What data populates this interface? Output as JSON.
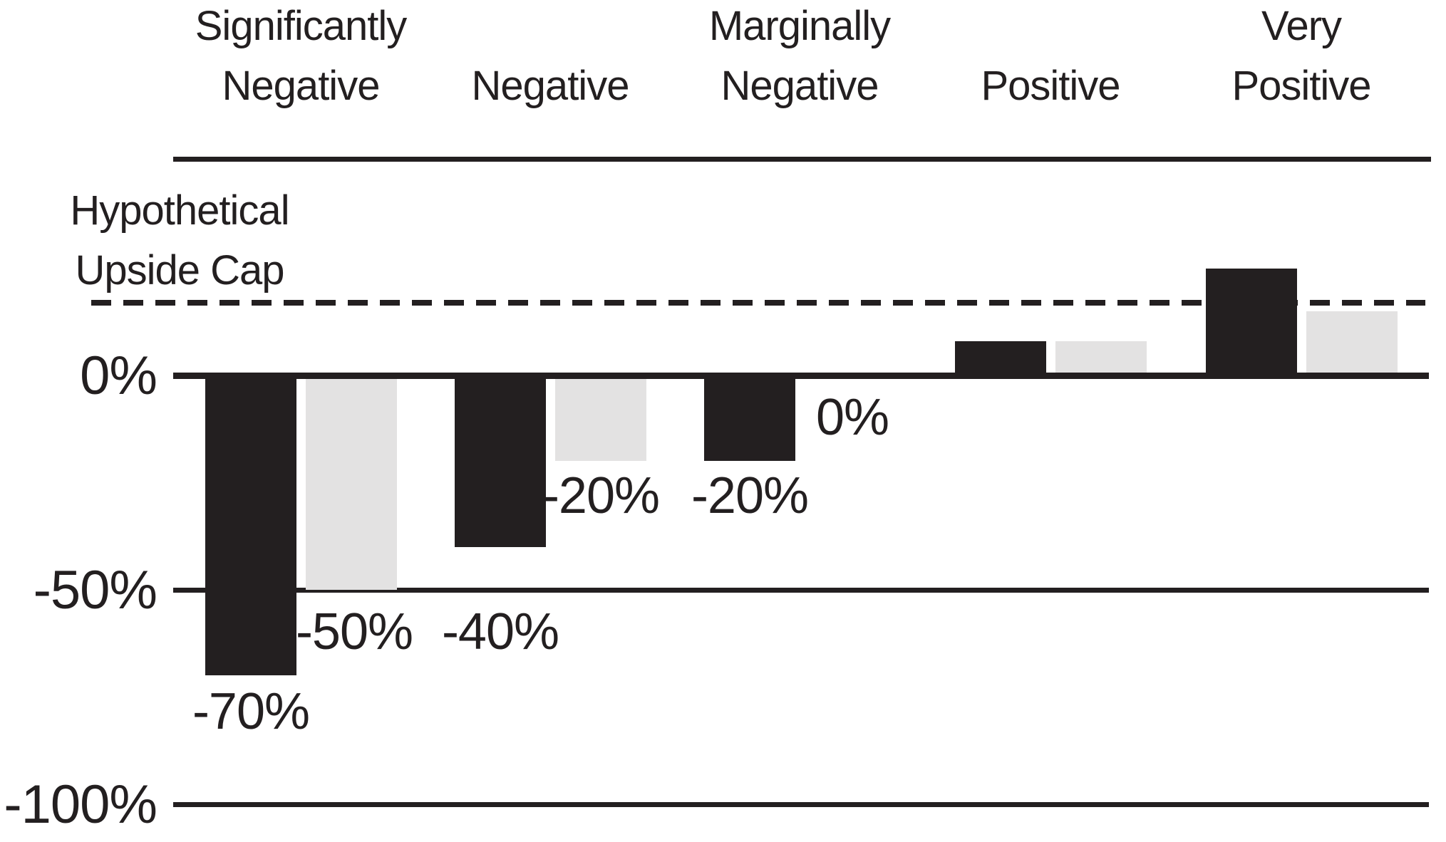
{
  "chart_data": {
    "type": "bar",
    "title": "",
    "categories": [
      {
        "label": "Significantly Negative",
        "lines": [
          "Significantly",
          "Negative"
        ]
      },
      {
        "label": "Negative",
        "lines": [
          "Negative"
        ]
      },
      {
        "label": "Marginally Negative",
        "lines": [
          "Marginally",
          "Negative"
        ]
      },
      {
        "label": "Positive",
        "lines": [
          "Positive"
        ]
      },
      {
        "label": "Very Positive",
        "lines": [
          "Very",
          "Positive"
        ]
      }
    ],
    "series": [
      {
        "name": "black",
        "color": "#231f20",
        "values": [
          -70,
          -40,
          -20,
          8,
          25
        ],
        "labels": [
          "-70%",
          "-40%",
          "-20%",
          null,
          null
        ]
      },
      {
        "name": "gray",
        "color": "#e3e2e2",
        "values": [
          -50,
          -20,
          0,
          8,
          15
        ],
        "labels": [
          "-50%",
          "-20%",
          "0%",
          null,
          null
        ]
      }
    ],
    "upside_cap": {
      "label_line1": "Hypothetical",
      "label_line2": "Upside Cap",
      "value_pct": 17,
      "line_style": "dashed"
    },
    "y_axis": {
      "ticks": [
        {
          "label": "0%",
          "value": 0
        },
        {
          "label": "-50%",
          "value": -50
        },
        {
          "label": "-100%",
          "value": -100
        }
      ],
      "range": [
        -100,
        30
      ]
    },
    "legend": "none",
    "grid": "horizontal-lines-0-m50-m100",
    "background_color": "#ffffff",
    "text_color": "#231f20"
  }
}
